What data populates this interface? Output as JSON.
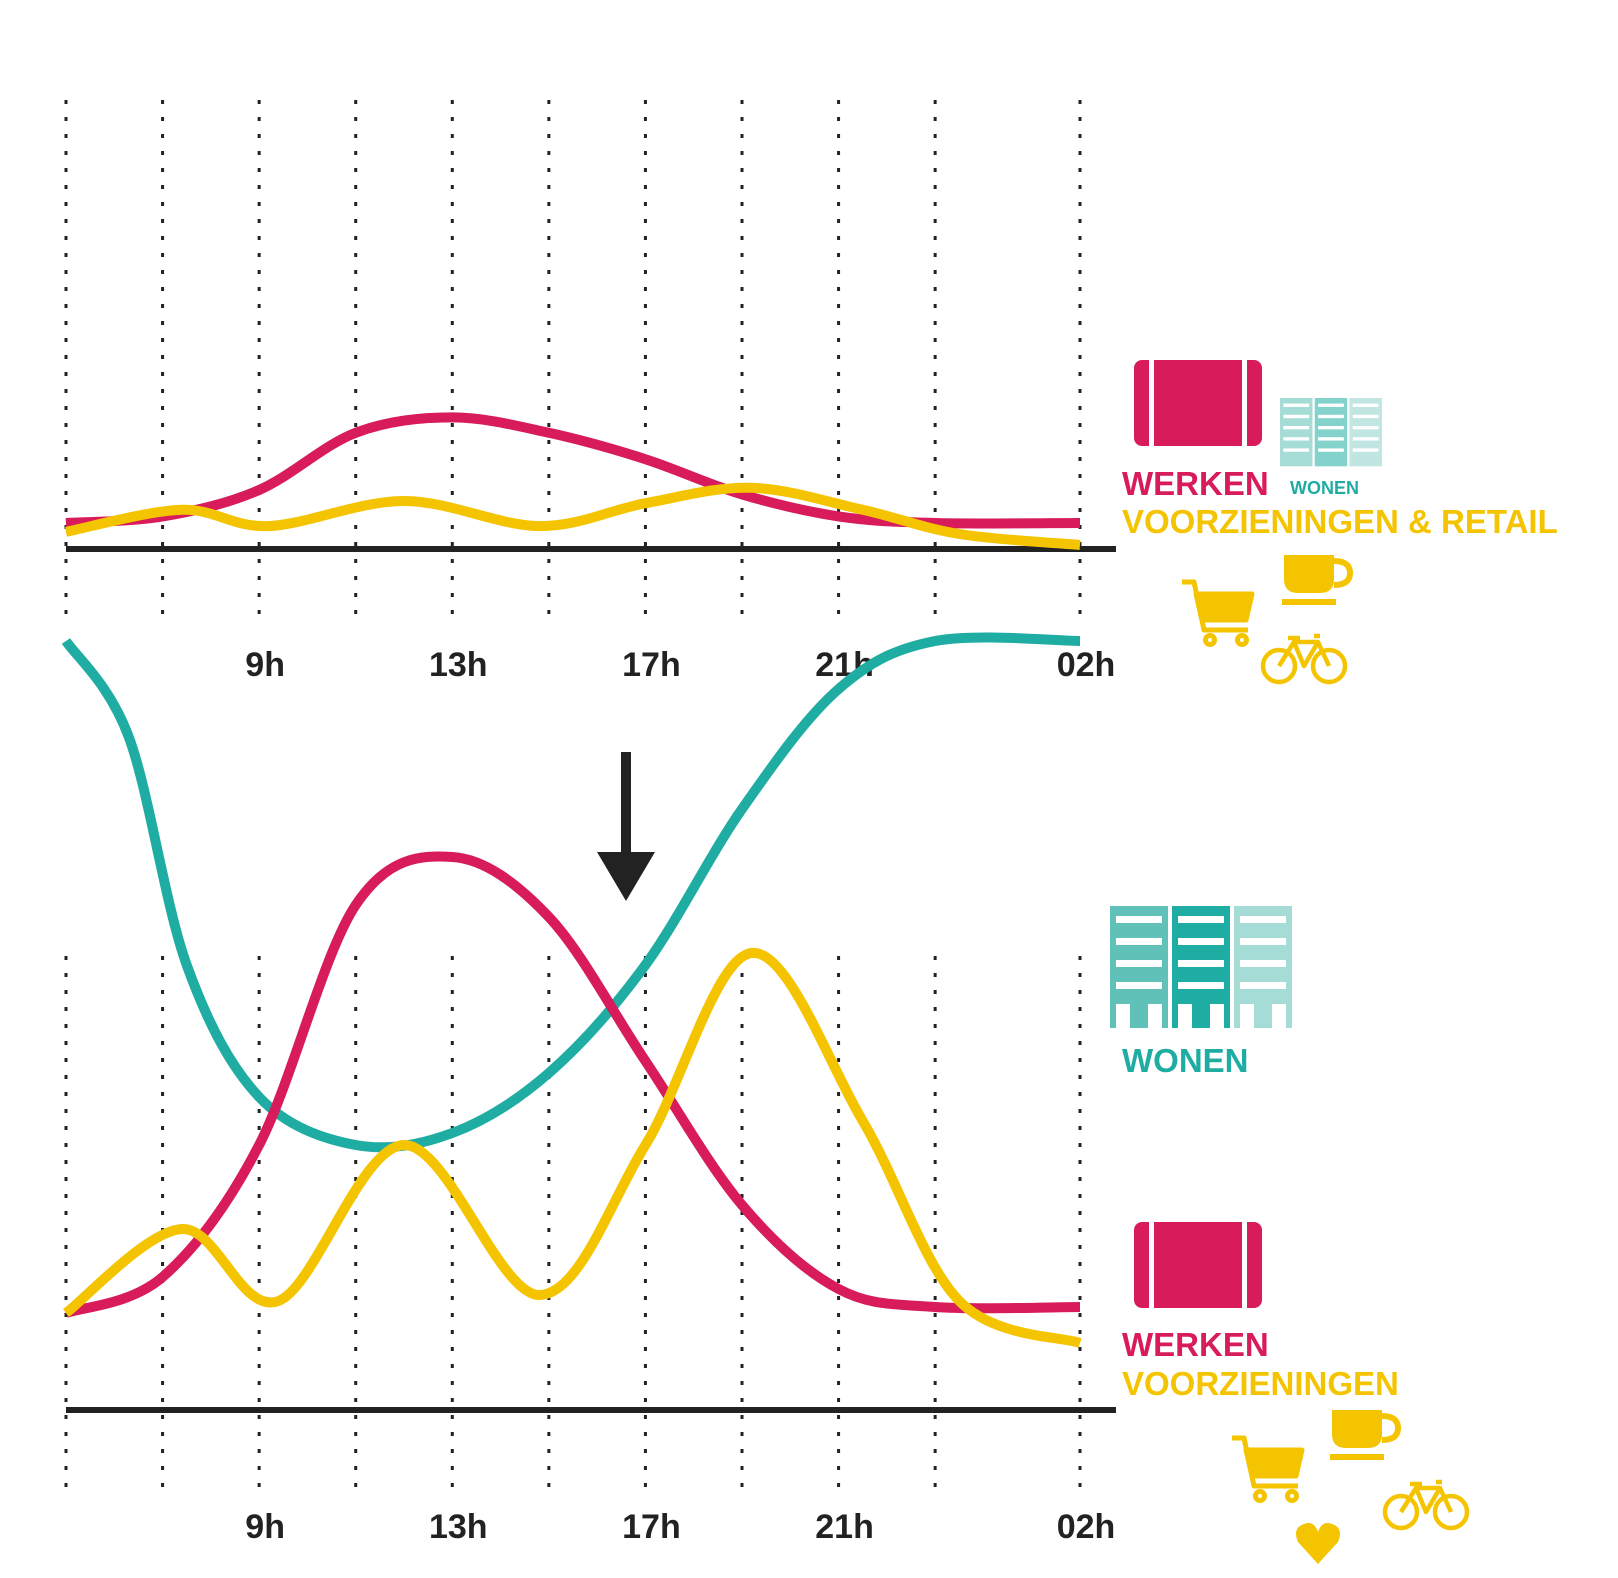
{
  "colors": {
    "werken": "#d81b5a",
    "wonen": "#1fada3",
    "wonen_light": "#a6dcd6",
    "voorzieningen": "#f5c400",
    "axis": "#222222",
    "grid": "#222222"
  },
  "icons": {
    "werken": "briefcase-icon",
    "wonen": "apartment-buildings-icon",
    "coffee": "coffee-cup-icon",
    "cart": "shopping-cart-icon",
    "bike": "bicycle-icon",
    "heart": "heart-icon"
  },
  "chart_data": [
    {
      "type": "line",
      "title": "",
      "xlabel": "",
      "ylabel": "",
      "x_ticks": [
        "9h",
        "13h",
        "17h",
        "21h",
        "02h"
      ],
      "x_tick_positions": [
        9,
        13,
        17,
        21,
        26
      ],
      "xlim": [
        5,
        26
      ],
      "ylim": [
        -0.5,
        5.5
      ],
      "grid": "dotted vertical every hour",
      "legend": {
        "werken": "WERKEN",
        "wonen": "WONEN",
        "voorzieningen": "VOORZIENINGEN & RETAIL"
      },
      "series": [
        {
          "name": "WERKEN",
          "color": "#d81b5a",
          "x": [
            5,
            7,
            9,
            11,
            13,
            15,
            17,
            19,
            21,
            23,
            26
          ],
          "y": [
            0.25,
            0.4,
            1.0,
            2.3,
            2.65,
            2.3,
            1.7,
            0.9,
            0.4,
            0.25,
            0.25
          ]
        },
        {
          "name": "VOORZIENINGEN & RETAIL",
          "color": "#f5c400",
          "x": [
            5,
            7.4,
            9.2,
            12,
            14.8,
            17,
            19.2,
            21.5,
            23.5,
            26
          ],
          "y": [
            0.05,
            0.55,
            0.18,
            0.75,
            0.18,
            0.7,
            1.05,
            0.55,
            0.0,
            -0.25
          ]
        }
      ]
    },
    {
      "type": "line",
      "title": "",
      "xlabel": "",
      "ylabel": "",
      "x_ticks": [
        "9h",
        "13h",
        "17h",
        "21h",
        "02h"
      ],
      "x_tick_positions": [
        9,
        13,
        17,
        21,
        26
      ],
      "xlim": [
        5,
        26
      ],
      "ylim": [
        -0.5,
        7.5
      ],
      "grid": "dotted vertical every hour",
      "legend": {
        "werken": "WERKEN",
        "wonen": "WONEN",
        "voorzieningen": "VOORZIENINGEN"
      },
      "series": [
        {
          "name": "WONEN",
          "color": "#1fada3",
          "x": [
            5,
            6.3,
            7.5,
            9,
            11,
            13,
            15,
            17,
            19,
            21,
            23,
            26
          ],
          "y": [
            6.1,
            5.3,
            3.4,
            2.3,
            1.9,
            2.0,
            2.5,
            3.4,
            4.7,
            5.7,
            6.1,
            6.1
          ]
        },
        {
          "name": "WERKEN",
          "color": "#d81b5a",
          "x": [
            5,
            7,
            9,
            11,
            13,
            15,
            17,
            19,
            21,
            23,
            26
          ],
          "y": [
            0.5,
            0.8,
            1.9,
            3.9,
            4.3,
            3.8,
            2.6,
            1.4,
            0.7,
            0.55,
            0.55
          ]
        },
        {
          "name": "VOORZIENINGEN",
          "color": "#f5c400",
          "x": [
            5,
            7.4,
            9.4,
            12,
            14.8,
            17,
            19.2,
            21.5,
            23.5,
            26
          ],
          "y": [
            0.5,
            1.2,
            0.6,
            1.9,
            0.65,
            1.9,
            3.5,
            2.1,
            0.6,
            0.25
          ]
        }
      ]
    }
  ]
}
